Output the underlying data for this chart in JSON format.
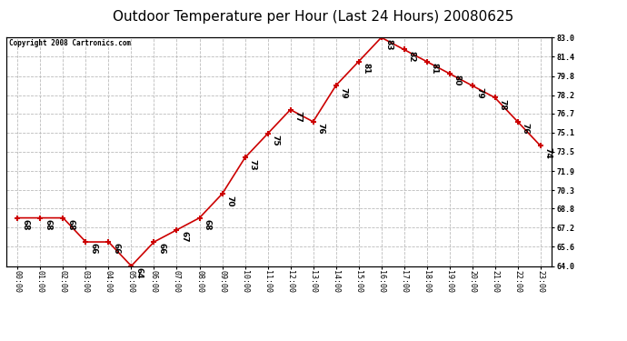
{
  "title": "Outdoor Temperature per Hour (Last 24 Hours) 20080625",
  "copyright": "Copyright 2008 Cartronics.com",
  "hours": [
    "00:00",
    "01:00",
    "02:00",
    "03:00",
    "04:00",
    "05:00",
    "06:00",
    "07:00",
    "08:00",
    "09:00",
    "10:00",
    "11:00",
    "12:00",
    "13:00",
    "14:00",
    "15:00",
    "16:00",
    "17:00",
    "18:00",
    "19:00",
    "20:00",
    "21:00",
    "22:00",
    "23:00"
  ],
  "values": [
    68,
    68,
    68,
    66,
    66,
    64,
    66,
    67,
    68,
    70,
    73,
    75,
    77,
    76,
    79,
    81,
    83,
    82,
    81,
    80,
    79,
    78,
    76,
    74
  ],
  "ylim": [
    64.0,
    83.0
  ],
  "yticks_right": [
    64.0,
    65.6,
    67.2,
    68.8,
    70.3,
    71.9,
    73.5,
    75.1,
    76.7,
    78.2,
    79.8,
    81.4,
    83.0
  ],
  "line_color": "#cc0000",
  "marker": "+",
  "marker_size": 5,
  "bg_color": "#ffffff",
  "grid_color": "#bbbbbb",
  "title_fontsize": 11,
  "tick_fontsize": 6,
  "annot_fontsize": 6.5
}
